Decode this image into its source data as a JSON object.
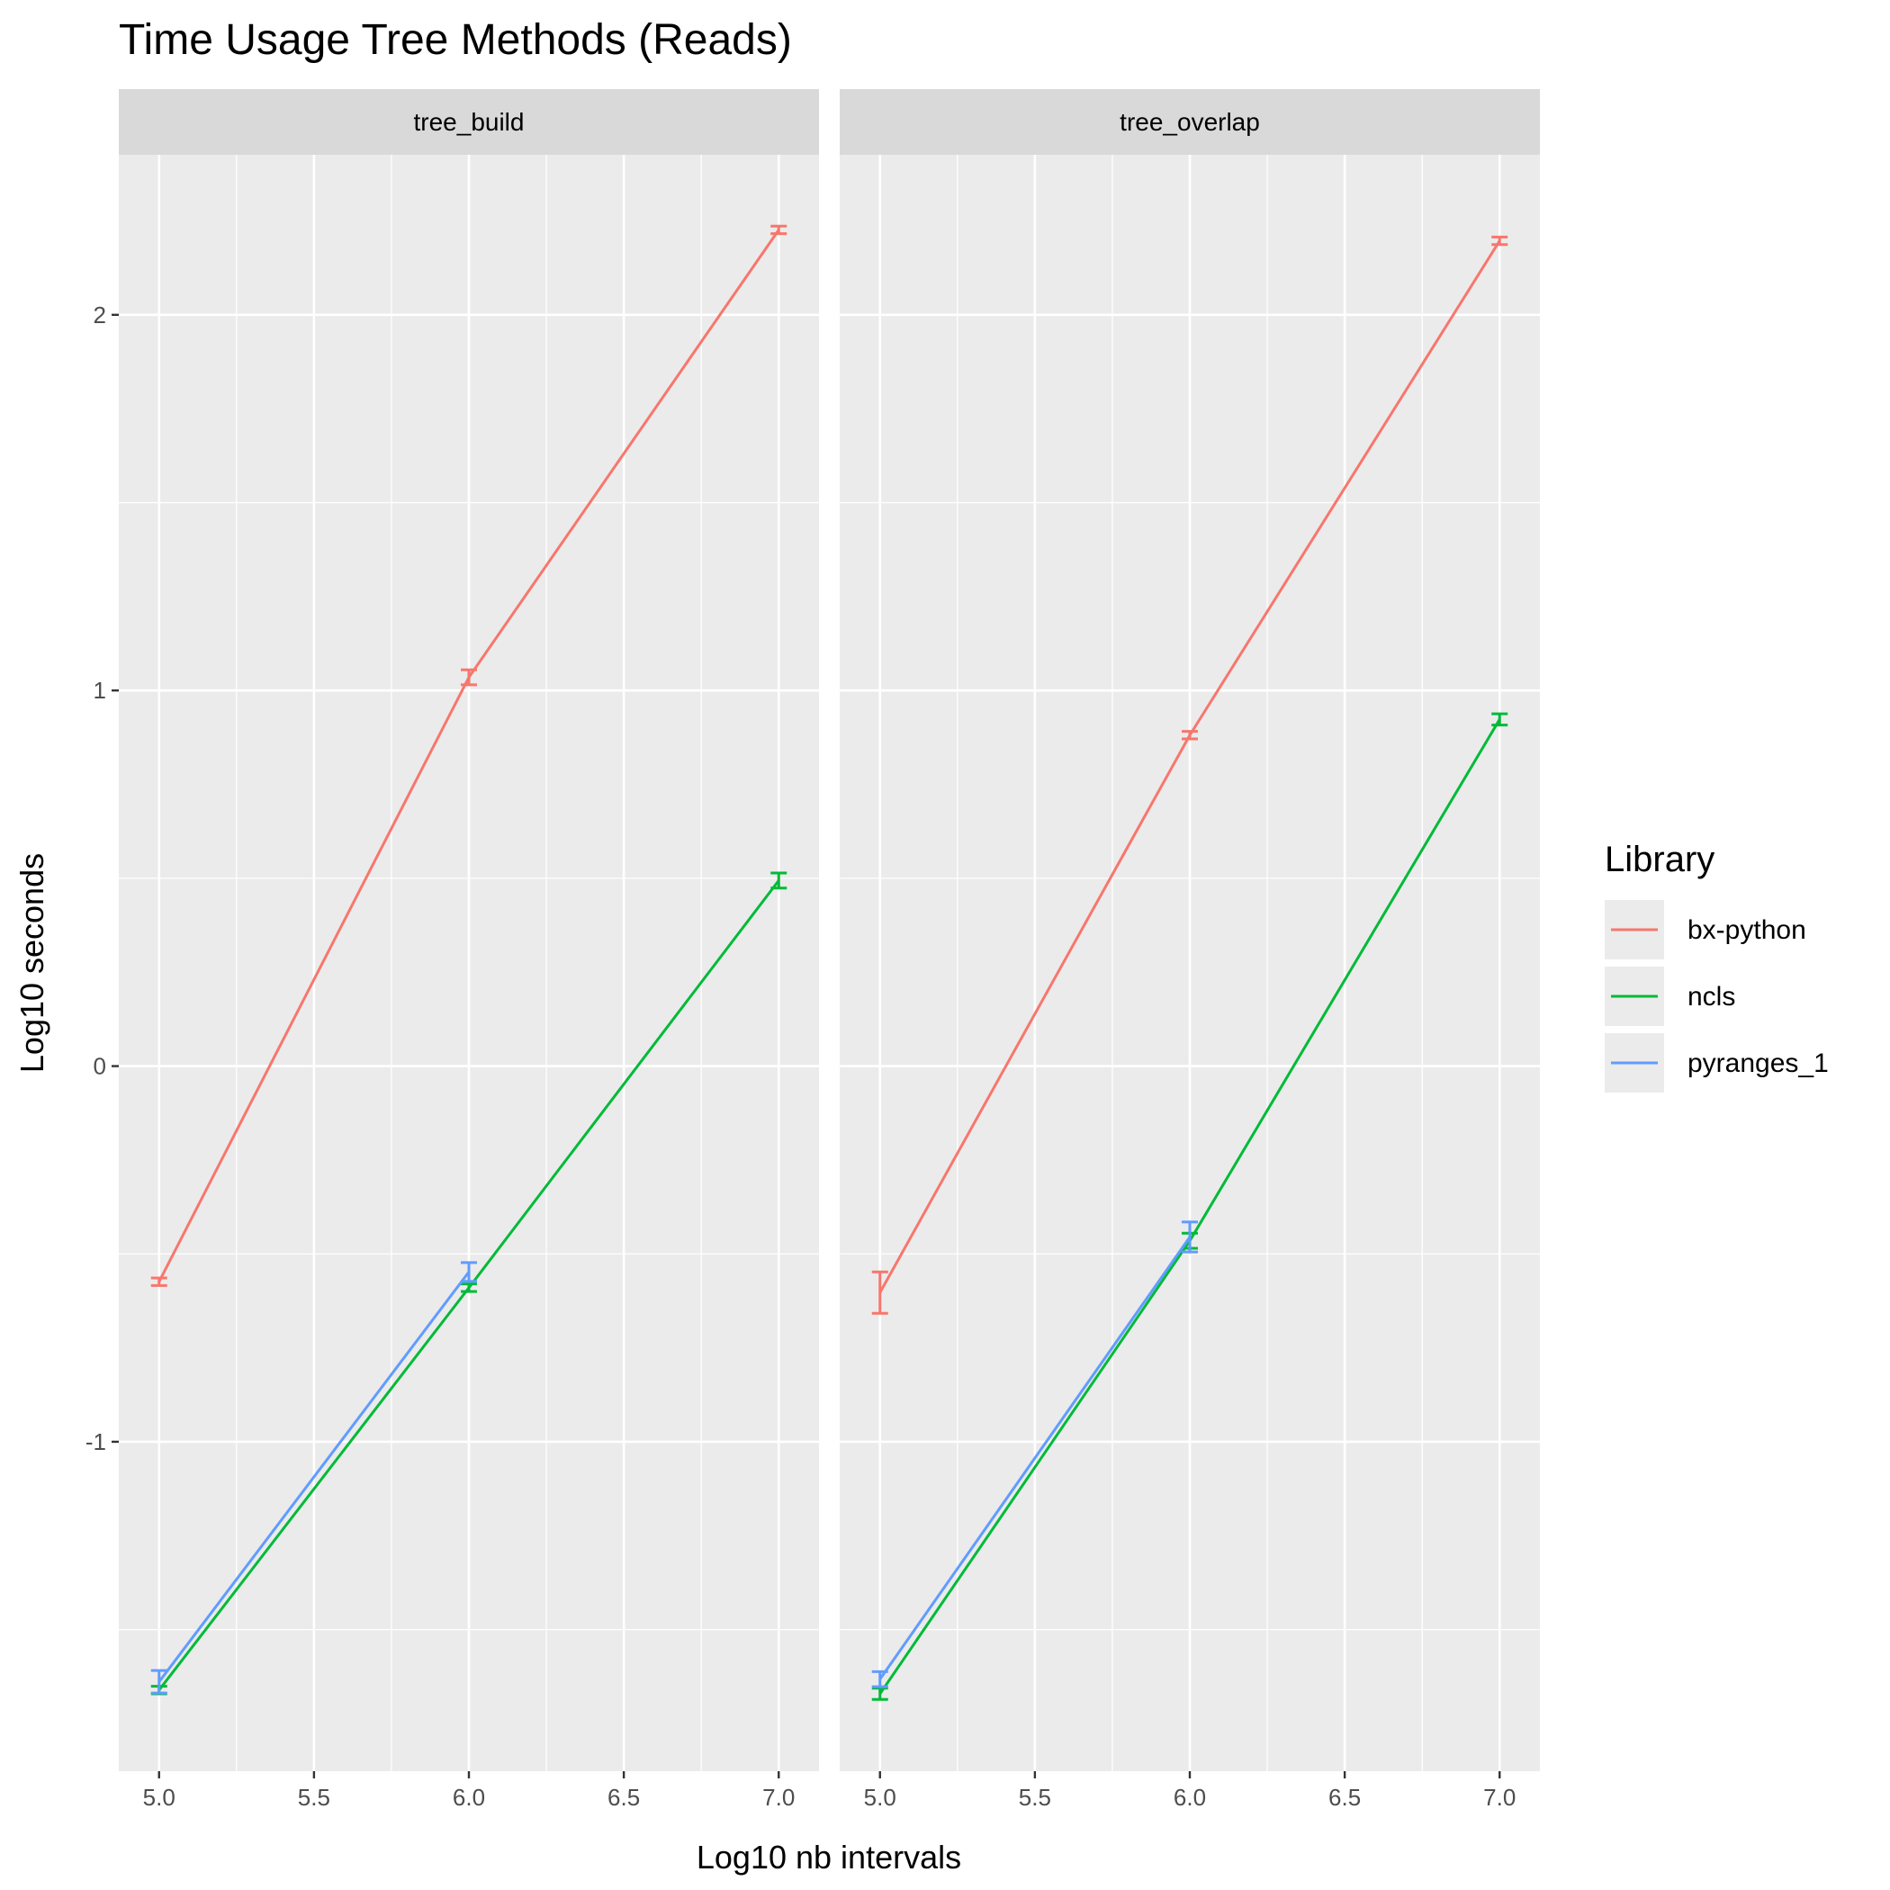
{
  "chart_data": {
    "type": "line",
    "title": "Time Usage Tree Methods (Reads)",
    "x_label": "Log10 nb intervals",
    "y_label": "Log10 seconds",
    "legend_title": "Library",
    "x": [
      5,
      6,
      7
    ],
    "xlim": [
      4.87,
      7.13
    ],
    "ylim": [
      -1.877,
      2.426
    ],
    "xticks": [
      {
        "value": 5,
        "label": "5.0"
      },
      5.5,
      {
        "value": 6,
        "label": "6.0"
      },
      6.5,
      {
        "value": 7,
        "label": "7.0"
      }
    ],
    "yticks": [
      -1,
      0,
      1,
      2
    ],
    "grid": true,
    "series": [
      {
        "name": "bx-python",
        "color": "#F8766D"
      },
      {
        "name": "ncls",
        "color": "#00BA38"
      },
      {
        "name": "pyranges_1",
        "color": "#619CFF"
      }
    ],
    "panels": [
      {
        "title": "tree_build",
        "values": [
          [
            -0.574,
            1.035,
            2.226
          ],
          [
            -1.661,
            -0.59,
            0.494
          ],
          [
            -1.639,
            -0.548,
            null
          ]
        ],
        "errors": [
          [
            0.01,
            0.02,
            0.01
          ],
          [
            0.01,
            0.01,
            0.02
          ],
          [
            0.03,
            0.025,
            null
          ]
        ]
      },
      {
        "title": "tree_overlap",
        "values": [
          [
            -0.603,
            0.881,
            2.197
          ],
          [
            -1.671,
            -0.465,
            0.923
          ],
          [
            -1.632,
            -0.455,
            null
          ]
        ],
        "errors": [
          [
            0.055,
            0.01,
            0.01
          ],
          [
            0.015,
            0.02,
            0.015
          ],
          [
            0.02,
            0.04,
            null
          ]
        ]
      }
    ]
  }
}
